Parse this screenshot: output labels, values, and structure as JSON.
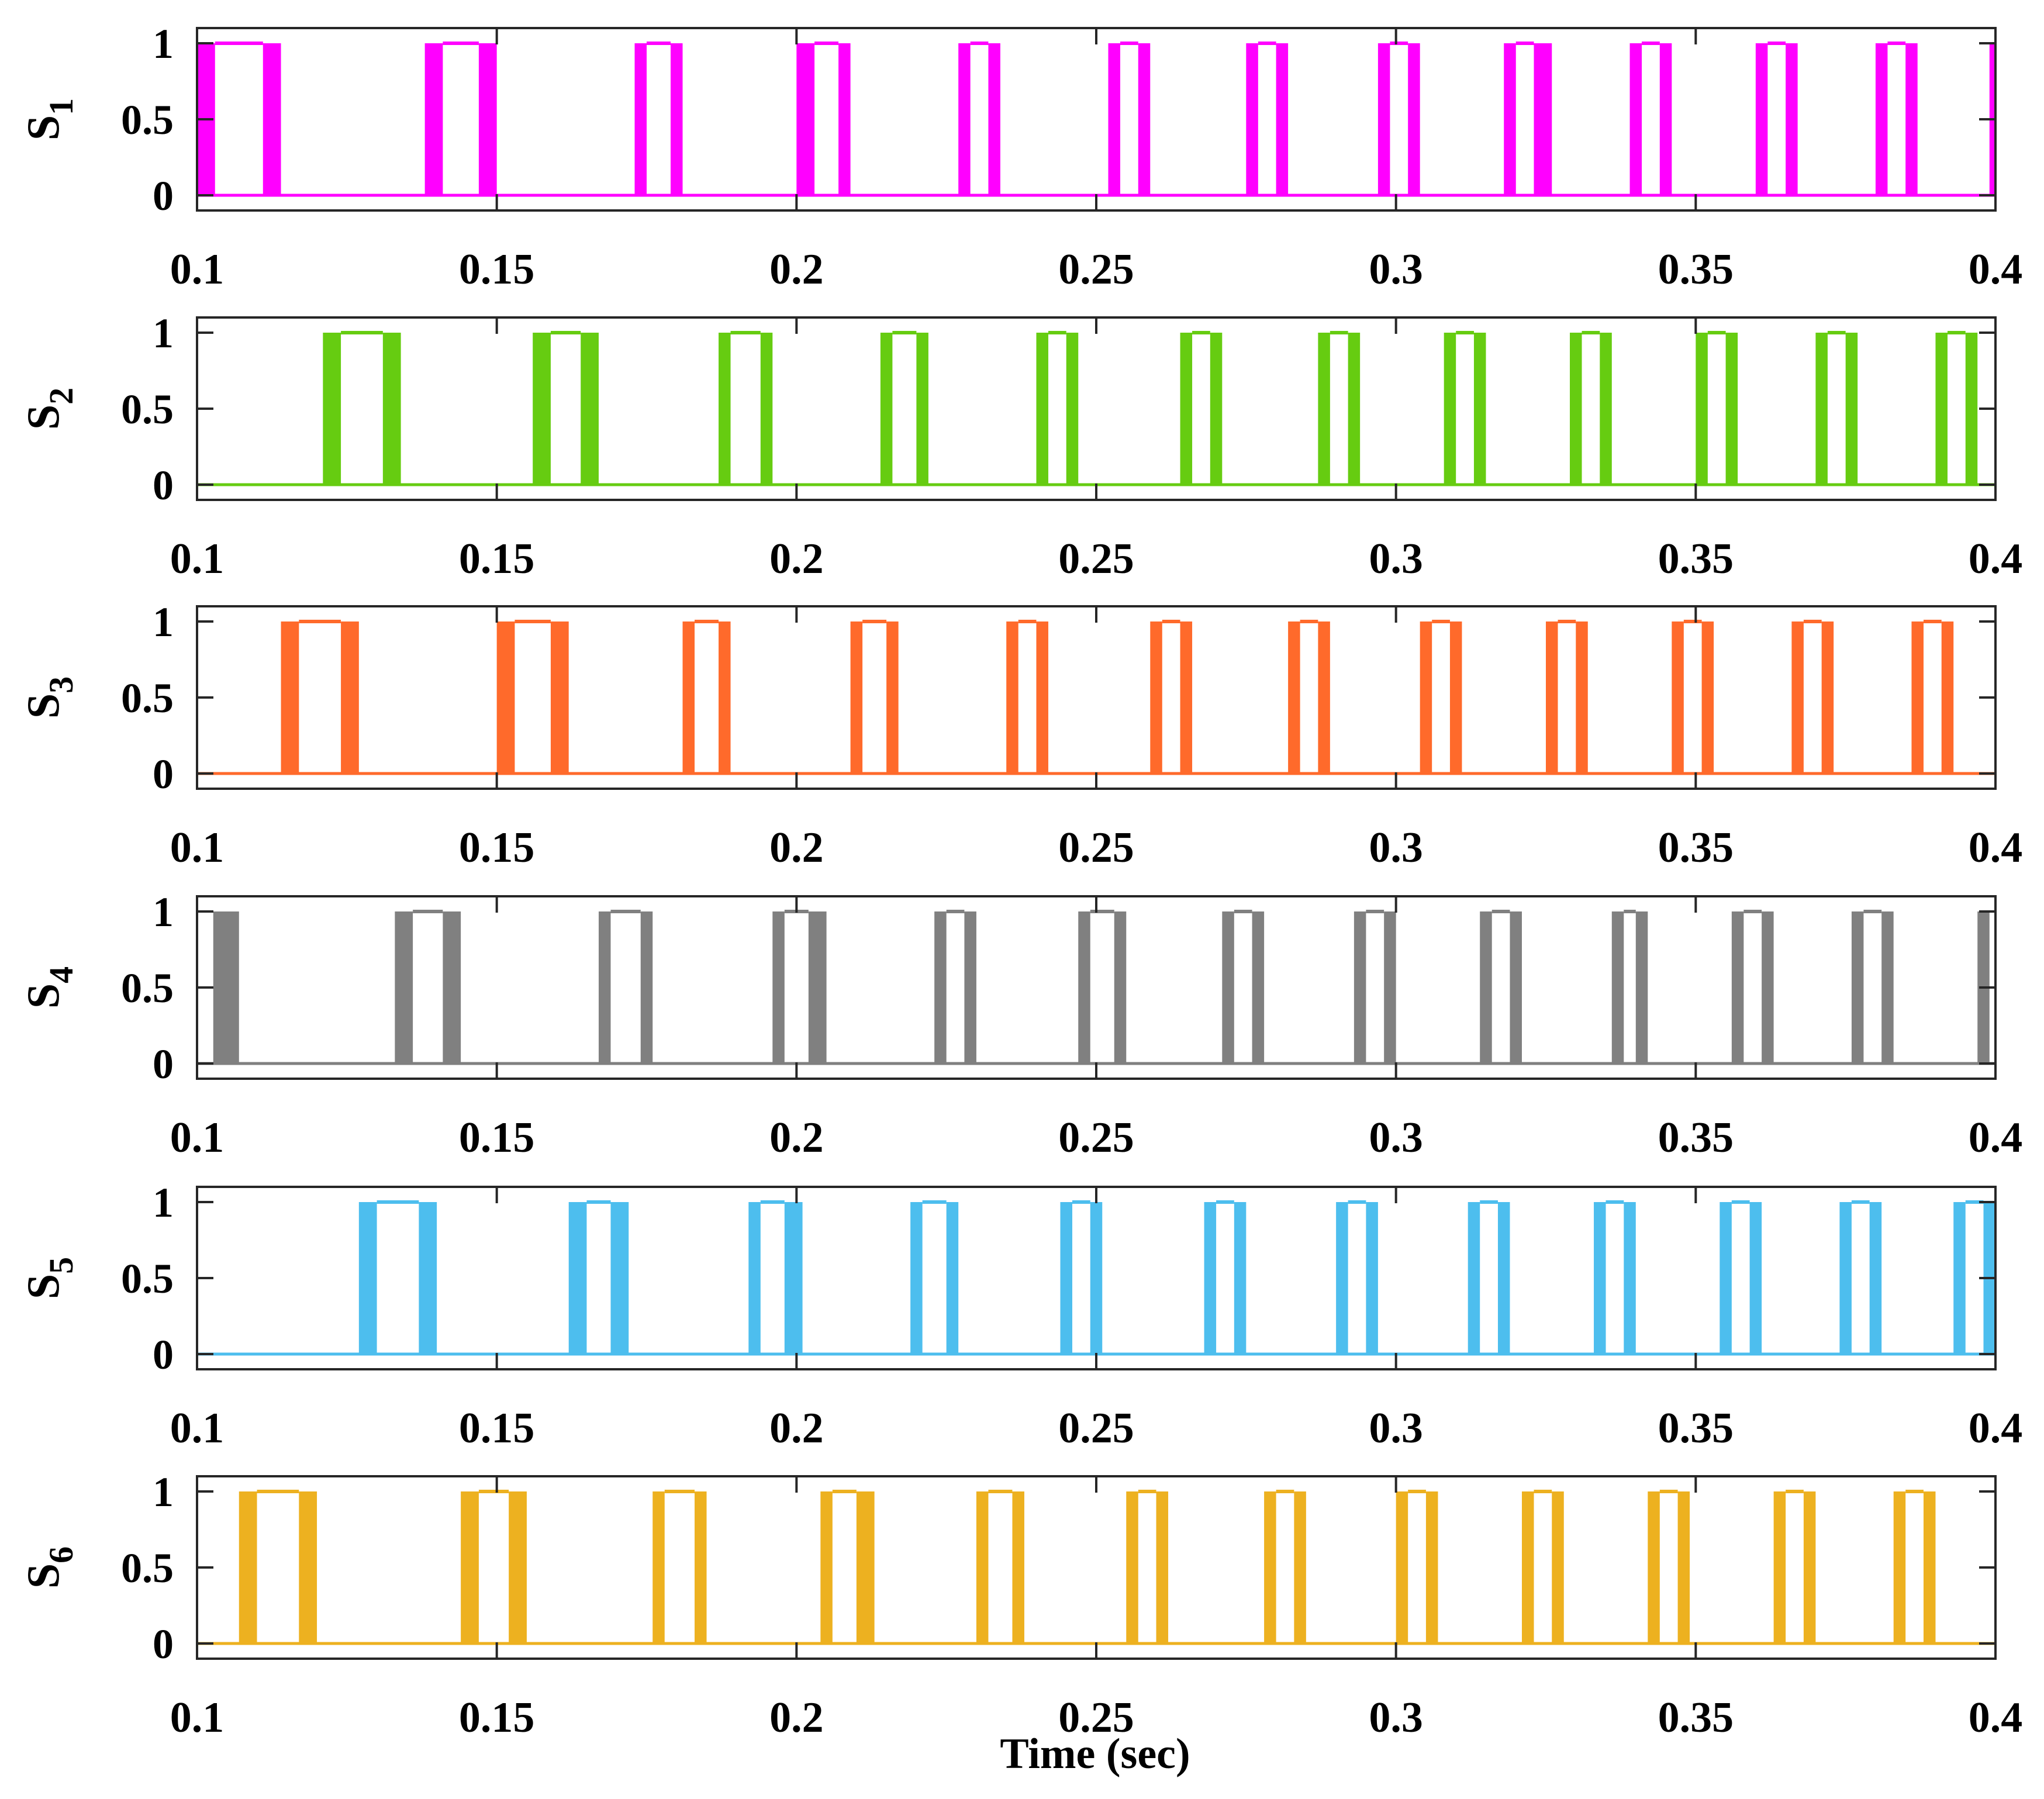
{
  "figure": {
    "xlabel": "Time (sec)"
  },
  "chart_data": [
    {
      "type": "line",
      "ylabel": "S",
      "ylabel_sub": "1",
      "color": "#FF00FF",
      "xlim": [
        0.1,
        0.4
      ],
      "ylim": [
        -0.1,
        1.1
      ],
      "xticks": [
        "0.1",
        "0.15",
        "0.2",
        "0.25",
        "0.3",
        "0.35",
        "0.4"
      ],
      "yticks": [
        "0",
        "0.5",
        "1"
      ],
      "grid": false,
      "pulses": [
        {
          "start": 0.1,
          "flat_start": 0.103,
          "flat_end": 0.111,
          "end": 0.114
        },
        {
          "start": 0.138,
          "flat_start": 0.141,
          "flat_end": 0.147,
          "end": 0.15
        },
        {
          "start": 0.173,
          "flat_start": 0.175,
          "flat_end": 0.179,
          "end": 0.181
        },
        {
          "start": 0.2,
          "flat_start": 0.203,
          "flat_end": 0.207,
          "end": 0.209
        },
        {
          "start": 0.227,
          "flat_start": 0.229,
          "flat_end": 0.232,
          "end": 0.234
        },
        {
          "start": 0.252,
          "flat_start": 0.254,
          "flat_end": 0.257,
          "end": 0.259
        },
        {
          "start": 0.275,
          "flat_start": 0.277,
          "flat_end": 0.28,
          "end": 0.282
        },
        {
          "start": 0.297,
          "flat_start": 0.299,
          "flat_end": 0.302,
          "end": 0.304
        },
        {
          "start": 0.318,
          "flat_start": 0.32,
          "flat_end": 0.323,
          "end": 0.326
        },
        {
          "start": 0.339,
          "flat_start": 0.341,
          "flat_end": 0.344,
          "end": 0.346
        },
        {
          "start": 0.36,
          "flat_start": 0.362,
          "flat_end": 0.365,
          "end": 0.367
        },
        {
          "start": 0.38,
          "flat_start": 0.382,
          "flat_end": 0.385,
          "end": 0.387
        },
        {
          "start": 0.399,
          "flat_start": 0.4,
          "flat_end": 0.4,
          "end": 0.4
        }
      ]
    },
    {
      "type": "line",
      "ylabel": "S",
      "ylabel_sub": "2",
      "color": "#66CC11",
      "xlim": [
        0.1,
        0.4
      ],
      "ylim": [
        -0.1,
        1.1
      ],
      "xticks": [
        "0.1",
        "0.15",
        "0.2",
        "0.25",
        "0.3",
        "0.35",
        "0.4"
      ],
      "yticks": [
        "0",
        "0.5",
        "1"
      ],
      "grid": false,
      "pulses": [
        {
          "start": 0.121,
          "flat_start": 0.124,
          "flat_end": 0.131,
          "end": 0.134
        },
        {
          "start": 0.156,
          "flat_start": 0.159,
          "flat_end": 0.164,
          "end": 0.167
        },
        {
          "start": 0.187,
          "flat_start": 0.189,
          "flat_end": 0.194,
          "end": 0.196
        },
        {
          "start": 0.214,
          "flat_start": 0.216,
          "flat_end": 0.22,
          "end": 0.222
        },
        {
          "start": 0.24,
          "flat_start": 0.242,
          "flat_end": 0.245,
          "end": 0.247
        },
        {
          "start": 0.264,
          "flat_start": 0.266,
          "flat_end": 0.269,
          "end": 0.271
        },
        {
          "start": 0.287,
          "flat_start": 0.289,
          "flat_end": 0.292,
          "end": 0.294
        },
        {
          "start": 0.308,
          "flat_start": 0.31,
          "flat_end": 0.313,
          "end": 0.315
        },
        {
          "start": 0.329,
          "flat_start": 0.331,
          "flat_end": 0.334,
          "end": 0.336
        },
        {
          "start": 0.35,
          "flat_start": 0.352,
          "flat_end": 0.355,
          "end": 0.357
        },
        {
          "start": 0.37,
          "flat_start": 0.372,
          "flat_end": 0.375,
          "end": 0.377
        },
        {
          "start": 0.39,
          "flat_start": 0.392,
          "flat_end": 0.395,
          "end": 0.397
        }
      ]
    },
    {
      "type": "line",
      "ylabel": "S",
      "ylabel_sub": "3",
      "color": "#FF6A2B",
      "xlim": [
        0.1,
        0.4
      ],
      "ylim": [
        -0.1,
        1.1
      ],
      "xticks": [
        "0.1",
        "0.15",
        "0.2",
        "0.25",
        "0.3",
        "0.35",
        "0.4"
      ],
      "yticks": [
        "0",
        "0.5",
        "1"
      ],
      "grid": false,
      "pulses": [
        {
          "start": 0.114,
          "flat_start": 0.117,
          "flat_end": 0.124,
          "end": 0.127
        },
        {
          "start": 0.15,
          "flat_start": 0.153,
          "flat_end": 0.159,
          "end": 0.162
        },
        {
          "start": 0.181,
          "flat_start": 0.183,
          "flat_end": 0.187,
          "end": 0.189
        },
        {
          "start": 0.209,
          "flat_start": 0.211,
          "flat_end": 0.215,
          "end": 0.217
        },
        {
          "start": 0.235,
          "flat_start": 0.237,
          "flat_end": 0.24,
          "end": 0.242
        },
        {
          "start": 0.259,
          "flat_start": 0.261,
          "flat_end": 0.264,
          "end": 0.266
        },
        {
          "start": 0.282,
          "flat_start": 0.284,
          "flat_end": 0.287,
          "end": 0.289
        },
        {
          "start": 0.304,
          "flat_start": 0.306,
          "flat_end": 0.309,
          "end": 0.311
        },
        {
          "start": 0.325,
          "flat_start": 0.327,
          "flat_end": 0.33,
          "end": 0.332
        },
        {
          "start": 0.346,
          "flat_start": 0.348,
          "flat_end": 0.351,
          "end": 0.353
        },
        {
          "start": 0.366,
          "flat_start": 0.368,
          "flat_end": 0.371,
          "end": 0.373
        },
        {
          "start": 0.386,
          "flat_start": 0.388,
          "flat_end": 0.391,
          "end": 0.393
        }
      ]
    },
    {
      "type": "line",
      "ylabel": "S",
      "ylabel_sub": "4",
      "color": "#808080",
      "xlim": [
        0.1,
        0.4
      ],
      "ylim": [
        -0.1,
        1.1
      ],
      "xticks": [
        "0.1",
        "0.15",
        "0.2",
        "0.25",
        "0.3",
        "0.35",
        "0.4"
      ],
      "yticks": [
        "0",
        "0.5",
        "1"
      ],
      "grid": false,
      "pulses": [
        {
          "start": 0.103,
          "flat_start": 0.103,
          "flat_end": 0.103,
          "end": 0.107
        },
        {
          "start": 0.133,
          "flat_start": 0.136,
          "flat_end": 0.141,
          "end": 0.144
        },
        {
          "start": 0.167,
          "flat_start": 0.169,
          "flat_end": 0.174,
          "end": 0.176
        },
        {
          "start": 0.196,
          "flat_start": 0.198,
          "flat_end": 0.202,
          "end": 0.205
        },
        {
          "start": 0.223,
          "flat_start": 0.225,
          "flat_end": 0.228,
          "end": 0.23
        },
        {
          "start": 0.247,
          "flat_start": 0.249,
          "flat_end": 0.253,
          "end": 0.255
        },
        {
          "start": 0.271,
          "flat_start": 0.273,
          "flat_end": 0.276,
          "end": 0.278
        },
        {
          "start": 0.293,
          "flat_start": 0.295,
          "flat_end": 0.298,
          "end": 0.3
        },
        {
          "start": 0.314,
          "flat_start": 0.316,
          "flat_end": 0.319,
          "end": 0.321
        },
        {
          "start": 0.336,
          "flat_start": 0.338,
          "flat_end": 0.34,
          "end": 0.342
        },
        {
          "start": 0.356,
          "flat_start": 0.358,
          "flat_end": 0.361,
          "end": 0.363
        },
        {
          "start": 0.376,
          "flat_start": 0.378,
          "flat_end": 0.381,
          "end": 0.383
        },
        {
          "start": 0.397,
          "flat_start": 0.399,
          "flat_end": 0.399,
          "end": 0.399
        }
      ]
    },
    {
      "type": "line",
      "ylabel": "S",
      "ylabel_sub": "5",
      "color": "#4DBEEE",
      "xlim": [
        0.1,
        0.4
      ],
      "ylim": [
        -0.1,
        1.1
      ],
      "xticks": [
        "0.1",
        "0.15",
        "0.2",
        "0.25",
        "0.3",
        "0.35",
        "0.4"
      ],
      "yticks": [
        "0",
        "0.5",
        "1"
      ],
      "grid": false,
      "pulses": [
        {
          "start": 0.127,
          "flat_start": 0.13,
          "flat_end": 0.137,
          "end": 0.14
        },
        {
          "start": 0.162,
          "flat_start": 0.165,
          "flat_end": 0.169,
          "end": 0.172
        },
        {
          "start": 0.192,
          "flat_start": 0.194,
          "flat_end": 0.198,
          "end": 0.201
        },
        {
          "start": 0.219,
          "flat_start": 0.221,
          "flat_end": 0.225,
          "end": 0.227
        },
        {
          "start": 0.244,
          "flat_start": 0.246,
          "flat_end": 0.249,
          "end": 0.251
        },
        {
          "start": 0.268,
          "flat_start": 0.27,
          "flat_end": 0.273,
          "end": 0.275
        },
        {
          "start": 0.29,
          "flat_start": 0.292,
          "flat_end": 0.295,
          "end": 0.297
        },
        {
          "start": 0.312,
          "flat_start": 0.314,
          "flat_end": 0.317,
          "end": 0.319
        },
        {
          "start": 0.333,
          "flat_start": 0.335,
          "flat_end": 0.338,
          "end": 0.34
        },
        {
          "start": 0.354,
          "flat_start": 0.356,
          "flat_end": 0.359,
          "end": 0.361
        },
        {
          "start": 0.374,
          "flat_start": 0.376,
          "flat_end": 0.379,
          "end": 0.381
        },
        {
          "start": 0.393,
          "flat_start": 0.395,
          "flat_end": 0.398,
          "end": 0.4
        }
      ]
    },
    {
      "type": "line",
      "ylabel": "S",
      "ylabel_sub": "6",
      "color": "#EDB120",
      "xlim": [
        0.1,
        0.4
      ],
      "ylim": [
        -0.1,
        1.1
      ],
      "xticks": [
        "0.1",
        "0.15",
        "0.2",
        "0.25",
        "0.3",
        "0.35",
        "0.4"
      ],
      "yticks": [
        "0",
        "0.5",
        "1"
      ],
      "grid": false,
      "pulses": [
        {
          "start": 0.107,
          "flat_start": 0.11,
          "flat_end": 0.117,
          "end": 0.12
        },
        {
          "start": 0.144,
          "flat_start": 0.147,
          "flat_end": 0.152,
          "end": 0.155
        },
        {
          "start": 0.176,
          "flat_start": 0.178,
          "flat_end": 0.183,
          "end": 0.185
        },
        {
          "start": 0.204,
          "flat_start": 0.206,
          "flat_end": 0.21,
          "end": 0.213
        },
        {
          "start": 0.23,
          "flat_start": 0.232,
          "flat_end": 0.236,
          "end": 0.238
        },
        {
          "start": 0.255,
          "flat_start": 0.257,
          "flat_end": 0.26,
          "end": 0.262
        },
        {
          "start": 0.278,
          "flat_start": 0.28,
          "flat_end": 0.283,
          "end": 0.285
        },
        {
          "start": 0.3,
          "flat_start": 0.302,
          "flat_end": 0.305,
          "end": 0.307
        },
        {
          "start": 0.321,
          "flat_start": 0.323,
          "flat_end": 0.326,
          "end": 0.328
        },
        {
          "start": 0.342,
          "flat_start": 0.344,
          "flat_end": 0.347,
          "end": 0.349
        },
        {
          "start": 0.363,
          "flat_start": 0.365,
          "flat_end": 0.368,
          "end": 0.37
        },
        {
          "start": 0.383,
          "flat_start": 0.385,
          "flat_end": 0.388,
          "end": 0.39
        }
      ]
    }
  ]
}
